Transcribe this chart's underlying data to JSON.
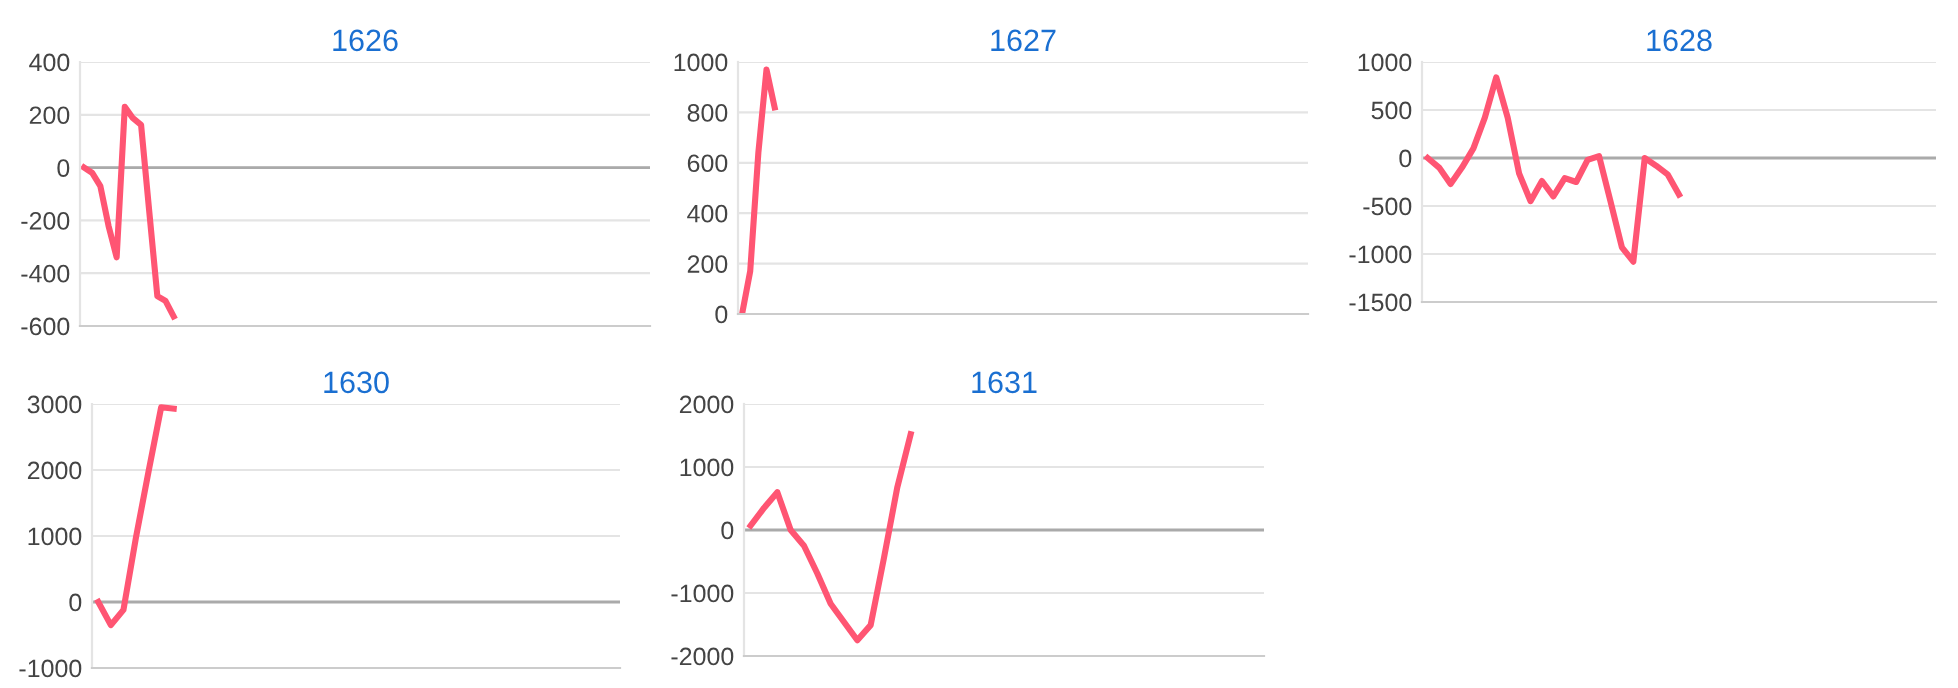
{
  "chart_data": [
    {
      "type": "line",
      "title": "1626",
      "categories": [
        null,
        null,
        null,
        null,
        null,
        null,
        null,
        null,
        null,
        null,
        null,
        null,
        null,
        null,
        null,
        null,
        null,
        null,
        null,
        null,
        null,
        null,
        null,
        null,
        null,
        null,
        null,
        null,
        null,
        null,
        null,
        null,
        null,
        null,
        null,
        null,
        null,
        null,
        null,
        null,
        null,
        null,
        null,
        null,
        null,
        null,
        null,
        null,
        null,
        null,
        null,
        null,
        null,
        null,
        null,
        null,
        null,
        null,
        null,
        null,
        null,
        null,
        null,
        null,
        null,
        null,
        null,
        null,
        null,
        null
      ],
      "series": [
        {
          "color": "#ff5573",
          "values": [
            0,
            -20,
            -70,
            -220,
            -340,
            230,
            187,
            162,
            -165,
            -487,
            -505,
            -564,
            null,
            null,
            null,
            null,
            null,
            null,
            null,
            null,
            null,
            null,
            null,
            null,
            null,
            null,
            null,
            null,
            null,
            null,
            null,
            null,
            null,
            null,
            null,
            null,
            null,
            null,
            null,
            null,
            null,
            null,
            null,
            null,
            null,
            null,
            null,
            null,
            null,
            null,
            null,
            null,
            null,
            null,
            null,
            null,
            null,
            null,
            null,
            null,
            null,
            null,
            null,
            null,
            null,
            null,
            null,
            null,
            null,
            null
          ]
        }
      ],
      "ylim": [
        -600,
        400
      ],
      "yticks": [
        -600,
        -400,
        -200,
        0,
        200,
        400
      ],
      "grid": "y",
      "ref_lines": [
        {
          "axis": "y",
          "value": 0,
          "color": "#aaaaaa"
        }
      ],
      "tick_labels": "y",
      "marker": "none",
      "line_style": "solid",
      "legend": false
    },
    {
      "type": "line",
      "title": "1627",
      "categories": [
        null,
        null,
        null,
        null,
        null,
        null,
        null,
        null,
        null,
        null,
        null,
        null,
        null,
        null,
        null,
        null,
        null,
        null,
        null,
        null,
        null,
        null,
        null,
        null,
        null,
        null,
        null,
        null,
        null,
        null,
        null,
        null,
        null,
        null,
        null,
        null,
        null,
        null,
        null,
        null,
        null,
        null,
        null,
        null,
        null,
        null,
        null,
        null,
        null,
        null,
        null,
        null,
        null,
        null,
        null,
        null,
        null,
        null,
        null,
        null,
        null,
        null,
        null,
        null,
        null,
        null,
        null,
        null,
        null,
        null
      ],
      "series": [
        {
          "color": "#ff5573",
          "values": [
            0,
            170,
            640,
            970,
            820,
            null,
            null,
            null,
            null,
            null,
            null,
            null,
            null,
            null,
            null,
            null,
            null,
            null,
            null,
            null,
            null,
            null,
            null,
            null,
            null,
            null,
            null,
            null,
            null,
            null,
            null,
            null,
            null,
            null,
            null,
            null,
            null,
            null,
            null,
            null,
            null,
            null,
            null,
            null,
            null,
            null,
            null,
            null,
            null,
            null,
            null,
            null,
            null,
            null,
            null,
            null,
            null,
            null,
            null,
            null,
            null,
            null,
            null,
            null,
            null,
            null,
            null,
            null,
            null,
            null
          ]
        }
      ],
      "ylim": [
        0,
        1000
      ],
      "yticks": [
        0,
        200,
        400,
        600,
        800,
        1000
      ],
      "grid": "y",
      "tick_labels": "y",
      "marker": "none",
      "line_style": "solid",
      "legend": false
    },
    {
      "type": "line",
      "title": "1628",
      "categories": [
        null,
        null,
        null,
        null,
        null,
        null,
        null,
        null,
        null,
        null,
        null,
        null,
        null,
        null,
        null,
        null,
        null,
        null,
        null,
        null,
        null,
        null,
        null,
        null,
        null,
        null,
        null,
        null,
        null,
        null,
        null,
        null,
        null,
        null,
        null,
        null,
        null,
        null,
        null,
        null,
        null,
        null,
        null,
        null,
        null
      ],
      "series": [
        {
          "color": "#ff5573",
          "values": [
            0,
            -100,
            -270,
            -100,
            100,
            420,
            840,
            420,
            -160,
            -450,
            -240,
            -400,
            -210,
            -250,
            -20,
            20,
            -450,
            -930,
            -1080,
            0,
            -80,
            -170,
            -380,
            null,
            null,
            null,
            null,
            null,
            null,
            null,
            null,
            null,
            null,
            null,
            null,
            null,
            null,
            null,
            null,
            null,
            null,
            null,
            null,
            null,
            null
          ]
        }
      ],
      "ylim": [
        -1500,
        1000
      ],
      "yticks": [
        -1500,
        -1000,
        -500,
        0,
        500,
        1000
      ],
      "grid": "y",
      "ref_lines": [
        {
          "axis": "y",
          "value": 0,
          "color": "#aaaaaa"
        }
      ],
      "tick_labels": "y",
      "marker": "none",
      "line_style": "solid",
      "legend": false
    },
    {
      "type": "line",
      "title": "1630",
      "categories": [
        null,
        null,
        null,
        null,
        null,
        null,
        null,
        null,
        null,
        null,
        null,
        null,
        null,
        null,
        null,
        null,
        null,
        null,
        null,
        null,
        null,
        null,
        null,
        null,
        null,
        null,
        null,
        null,
        null,
        null,
        null,
        null,
        null,
        null,
        null,
        null,
        null,
        null,
        null,
        null,
        null,
        null
      ],
      "series": [
        {
          "color": "#ff5573",
          "values": [
            0,
            -350,
            -120,
            980,
            1980,
            2950,
            2930,
            null,
            null,
            null,
            null,
            null,
            null,
            null,
            null,
            null,
            null,
            null,
            null,
            null,
            null,
            null,
            null,
            null,
            null,
            null,
            null,
            null,
            null,
            null,
            null,
            null,
            null,
            null,
            null,
            null,
            null,
            null,
            null,
            null,
            null,
            null
          ]
        }
      ],
      "ylim": [
        -1000,
        3000
      ],
      "yticks": [
        -1000,
        0,
        1000,
        2000,
        3000
      ],
      "grid": "y",
      "ref_lines": [
        {
          "axis": "y",
          "value": 0,
          "color": "#aaaaaa"
        }
      ],
      "tick_labels": "y",
      "marker": "none",
      "line_style": "solid",
      "legend": false
    },
    {
      "type": "line",
      "title": "1631",
      "categories": [
        null,
        null,
        null,
        null,
        null,
        null,
        null,
        null,
        null,
        null,
        null,
        null,
        null,
        null,
        null,
        null,
        null,
        null,
        null,
        null,
        null,
        null,
        null,
        null,
        null,
        null,
        null,
        null,
        null,
        null,
        null,
        null,
        null,
        null,
        null,
        null,
        null,
        null,
        null
      ],
      "series": [
        {
          "color": "#ff5573",
          "values": [
            70,
            350,
            600,
            0,
            -250,
            -690,
            -1170,
            -1460,
            -1750,
            -1510,
            -440,
            680,
            1520,
            null,
            null,
            null,
            null,
            null,
            null,
            null,
            null,
            null,
            null,
            null,
            null,
            null,
            null,
            null,
            null,
            null,
            null,
            null,
            null,
            null,
            null,
            null,
            null,
            null,
            null
          ]
        }
      ],
      "ylim": [
        -2000,
        2000
      ],
      "yticks": [
        -2000,
        -1000,
        0,
        1000,
        2000
      ],
      "grid": "y",
      "ref_lines": [
        {
          "axis": "y",
          "value": 0,
          "color": "#aaaaaa"
        }
      ],
      "tick_labels": "y",
      "marker": "none",
      "line_style": "solid",
      "legend": false
    }
  ]
}
